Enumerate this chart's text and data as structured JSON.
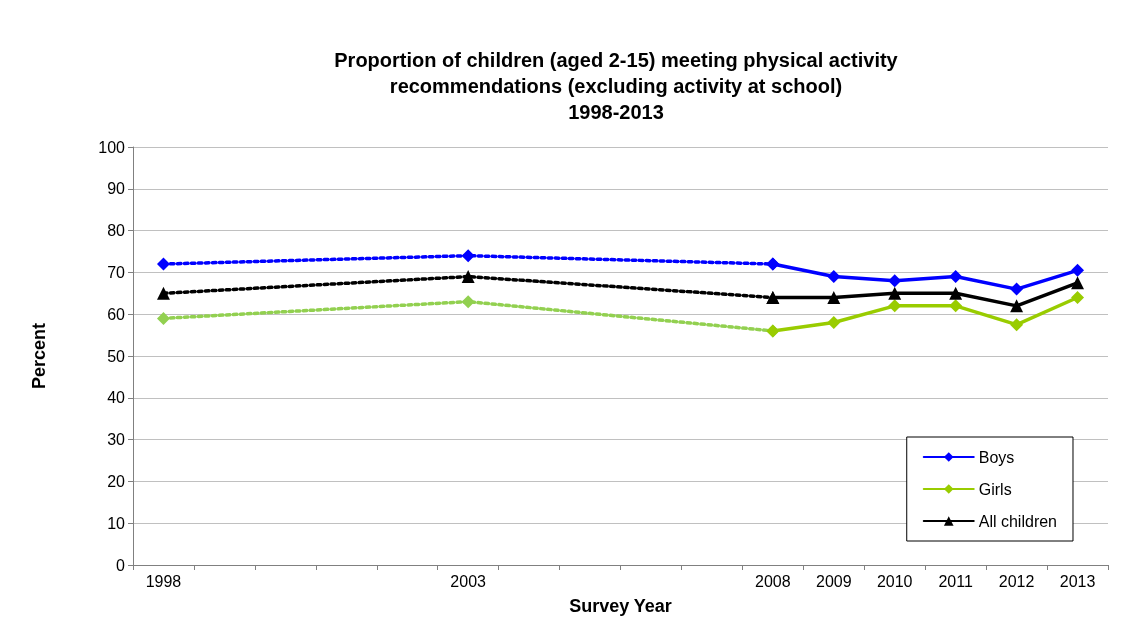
{
  "chart_data": {
    "type": "line",
    "title": "Proportion of children (aged 2-15) meeting physical activity\nrecommendations (excluding activity at school)\n1998-2013",
    "xlabel": "Survey Year",
    "ylabel": "Percent",
    "categories": [
      "1998",
      null,
      null,
      null,
      null,
      "2003",
      null,
      null,
      null,
      null,
      "2008",
      "2009",
      "2010",
      "2011",
      "2012",
      "2013"
    ],
    "series": [
      {
        "color": "#0000ff",
        "marker": "diamond",
        "line_style": "dotted",
        "values": [
          72,
          null,
          null,
          null,
          null,
          74,
          null,
          null,
          null,
          null,
          72,
          null,
          null,
          null,
          null,
          null
        ]
      },
      {
        "color": "#92d050",
        "marker": "diamond",
        "line_style": "dotted",
        "values": [
          59,
          null,
          null,
          null,
          null,
          63,
          null,
          null,
          null,
          null,
          56,
          null,
          null,
          null,
          null,
          null
        ]
      },
      {
        "color": "#000000",
        "marker": "triangle",
        "line_style": "dotted",
        "values": [
          65,
          null,
          null,
          null,
          null,
          69,
          null,
          null,
          null,
          null,
          64,
          null,
          null,
          null,
          null,
          null
        ]
      },
      {
        "name": "Boys",
        "color": "#0000ff",
        "marker": "diamond",
        "line_style": "solid",
        "values": [
          null,
          null,
          null,
          null,
          null,
          null,
          null,
          null,
          null,
          null,
          72,
          69,
          68,
          69,
          66,
          70.5
        ]
      },
      {
        "name": "Girls",
        "color": "#99cc00",
        "marker": "diamond",
        "line_style": "solid",
        "values": [
          null,
          null,
          null,
          null,
          null,
          null,
          null,
          null,
          null,
          null,
          56,
          58,
          62,
          62,
          57.5,
          64
        ]
      },
      {
        "name": "All children",
        "color": "#000000",
        "marker": "triangle",
        "line_style": "solid",
        "values": [
          null,
          null,
          null,
          null,
          null,
          null,
          null,
          null,
          null,
          null,
          64,
          64,
          65,
          65,
          62,
          67.5
        ]
      }
    ],
    "ylim": [
      0,
      100
    ],
    "yticks": [
      0,
      10,
      20,
      30,
      40,
      50,
      60,
      70,
      80,
      90,
      100
    ],
    "grid": "y",
    "legend": "bottom right"
  }
}
